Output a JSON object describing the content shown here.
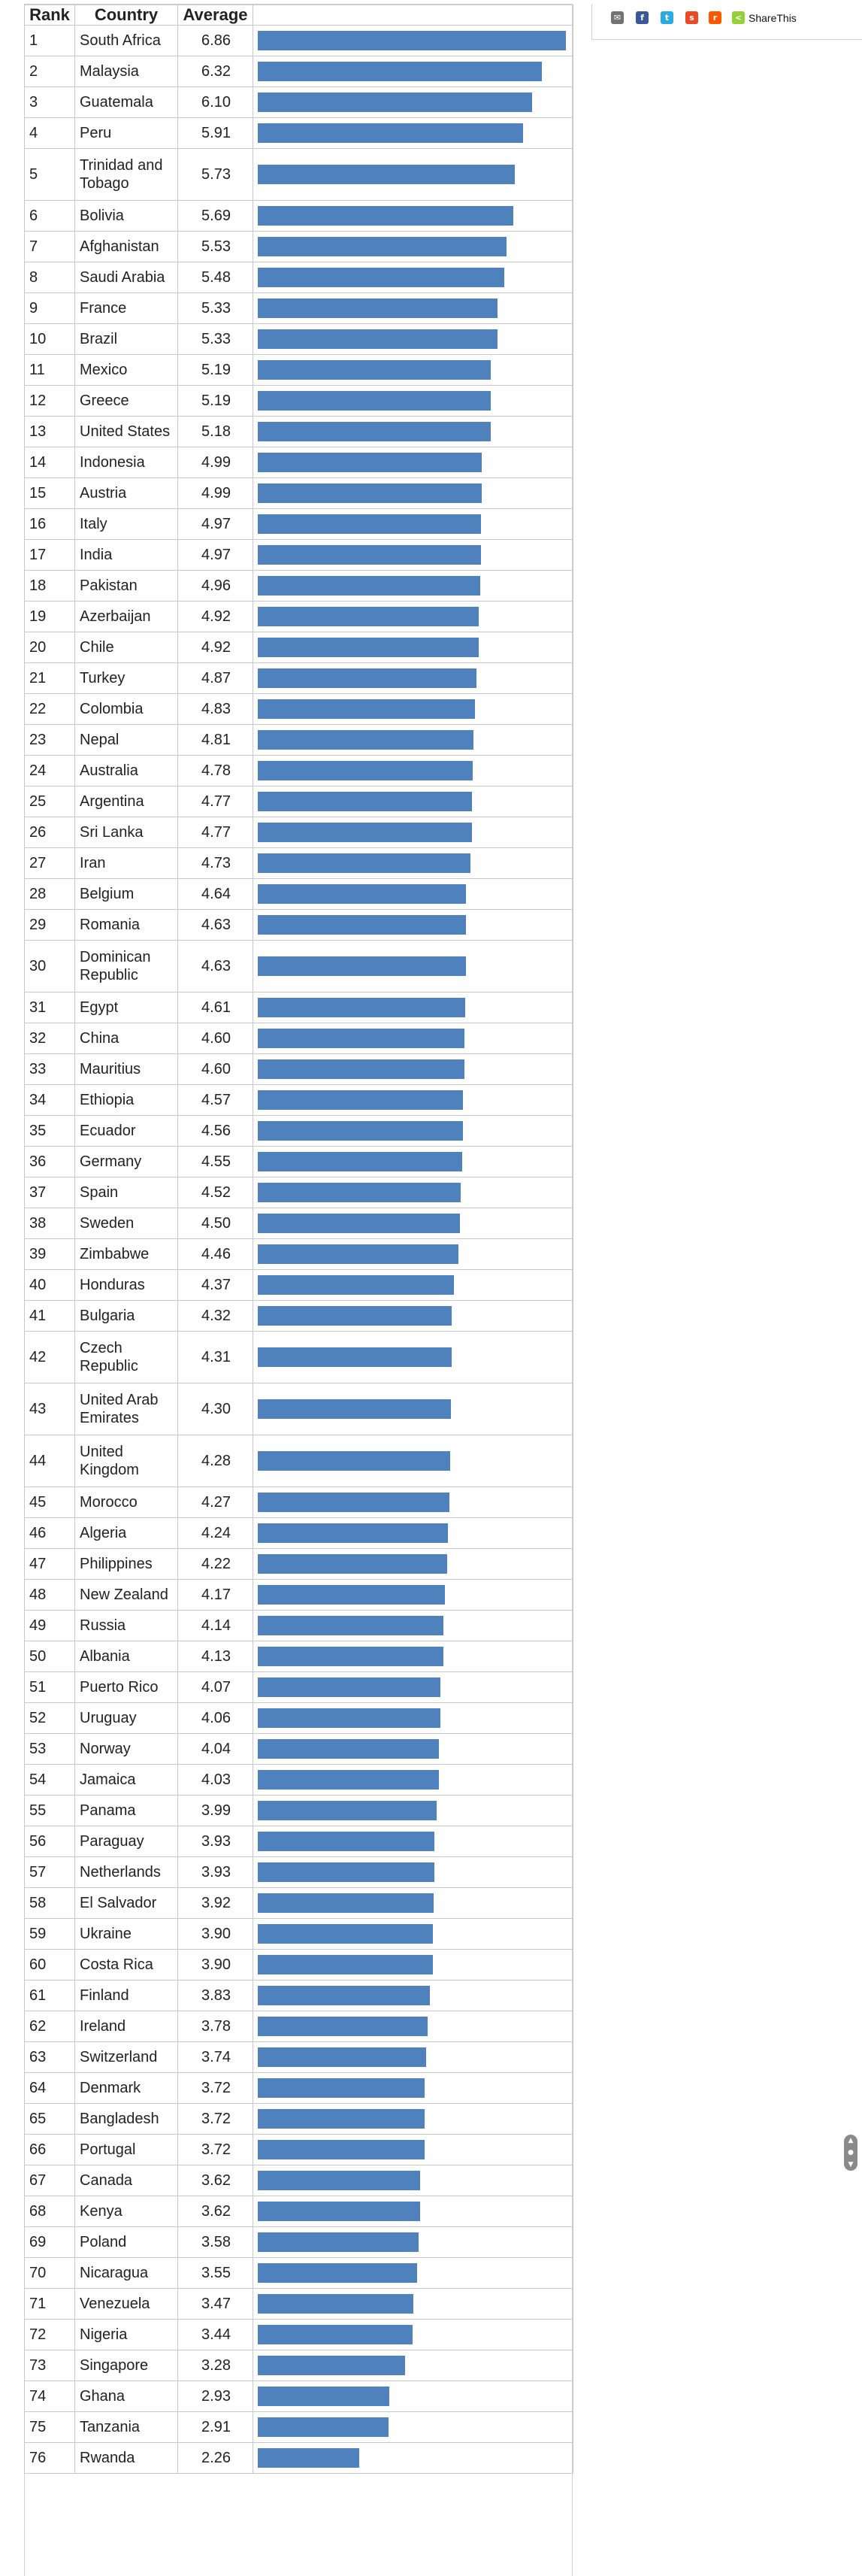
{
  "table": {
    "headers": {
      "rank": "Rank",
      "country": "Country",
      "average": "Average"
    }
  },
  "share": {
    "label": "ShareThis"
  },
  "colors": {
    "bar": "#4f81bd",
    "email": "#737373",
    "facebook": "#3b5998",
    "twitter": "#2ca9e1",
    "stumbleupon": "#eb4924",
    "reddit": "#ff5700",
    "sharethis": "#95d03a"
  },
  "chart_data": {
    "type": "bar",
    "orientation": "horizontal",
    "value_label": "Average",
    "rows": [
      {
        "rank": "1",
        "country": "South Africa",
        "average": "6.86"
      },
      {
        "rank": "2",
        "country": "Malaysia",
        "average": "6.32"
      },
      {
        "rank": "3",
        "country": "Guatemala",
        "average": "6.10"
      },
      {
        "rank": "4",
        "country": "Peru",
        "average": "5.91"
      },
      {
        "rank": "5",
        "country": "Trinidad and Tobago",
        "average": "5.73"
      },
      {
        "rank": "6",
        "country": "Bolivia",
        "average": "5.69"
      },
      {
        "rank": "7",
        "country": "Afghanistan",
        "average": "5.53"
      },
      {
        "rank": "8",
        "country": "Saudi Arabia",
        "average": "5.48"
      },
      {
        "rank": "9",
        "country": "France",
        "average": "5.33"
      },
      {
        "rank": "10",
        "country": "Brazil",
        "average": "5.33"
      },
      {
        "rank": "11",
        "country": "Mexico",
        "average": "5.19"
      },
      {
        "rank": "12",
        "country": "Greece",
        "average": "5.19"
      },
      {
        "rank": "13",
        "country": "United States",
        "average": "5.18"
      },
      {
        "rank": "14",
        "country": "Indonesia",
        "average": "4.99"
      },
      {
        "rank": "15",
        "country": "Austria",
        "average": "4.99"
      },
      {
        "rank": "16",
        "country": "Italy",
        "average": "4.97"
      },
      {
        "rank": "17",
        "country": "India",
        "average": "4.97"
      },
      {
        "rank": "18",
        "country": "Pakistan",
        "average": "4.96"
      },
      {
        "rank": "19",
        "country": "Azerbaijan",
        "average": "4.92"
      },
      {
        "rank": "20",
        "country": "Chile",
        "average": "4.92"
      },
      {
        "rank": "21",
        "country": "Turkey",
        "average": "4.87"
      },
      {
        "rank": "22",
        "country": "Colombia",
        "average": "4.83"
      },
      {
        "rank": "23",
        "country": "Nepal",
        "average": "4.81"
      },
      {
        "rank": "24",
        "country": "Australia",
        "average": "4.78"
      },
      {
        "rank": "25",
        "country": "Argentina",
        "average": "4.77"
      },
      {
        "rank": "26",
        "country": "Sri Lanka",
        "average": "4.77"
      },
      {
        "rank": "27",
        "country": "Iran",
        "average": "4.73"
      },
      {
        "rank": "28",
        "country": "Belgium",
        "average": "4.64"
      },
      {
        "rank": "29",
        "country": "Romania",
        "average": "4.63"
      },
      {
        "rank": "30",
        "country": "Dominican Republic",
        "average": "4.63"
      },
      {
        "rank": "31",
        "country": "Egypt",
        "average": "4.61"
      },
      {
        "rank": "32",
        "country": "China",
        "average": "4.60"
      },
      {
        "rank": "33",
        "country": "Mauritius",
        "average": "4.60"
      },
      {
        "rank": "34",
        "country": "Ethiopia",
        "average": "4.57"
      },
      {
        "rank": "35",
        "country": "Ecuador",
        "average": "4.56"
      },
      {
        "rank": "36",
        "country": "Germany",
        "average": "4.55"
      },
      {
        "rank": "37",
        "country": "Spain",
        "average": "4.52"
      },
      {
        "rank": "38",
        "country": "Sweden",
        "average": "4.50"
      },
      {
        "rank": "39",
        "country": "Zimbabwe",
        "average": "4.46"
      },
      {
        "rank": "40",
        "country": "Honduras",
        "average": "4.37"
      },
      {
        "rank": "41",
        "country": "Bulgaria",
        "average": "4.32"
      },
      {
        "rank": "42",
        "country": "Czech Republic",
        "average": "4.31"
      },
      {
        "rank": "43",
        "country": "United Arab Emirates",
        "average": "4.30"
      },
      {
        "rank": "44",
        "country": "United Kingdom",
        "average": "4.28"
      },
      {
        "rank": "45",
        "country": "Morocco",
        "average": "4.27"
      },
      {
        "rank": "46",
        "country": "Algeria",
        "average": "4.24"
      },
      {
        "rank": "47",
        "country": "Philippines",
        "average": "4.22"
      },
      {
        "rank": "48",
        "country": "New Zealand",
        "average": "4.17"
      },
      {
        "rank": "49",
        "country": "Russia",
        "average": "4.14"
      },
      {
        "rank": "50",
        "country": "Albania",
        "average": "4.13"
      },
      {
        "rank": "51",
        "country": "Puerto Rico",
        "average": "4.07"
      },
      {
        "rank": "52",
        "country": "Uruguay",
        "average": "4.06"
      },
      {
        "rank": "53",
        "country": "Norway",
        "average": "4.04"
      },
      {
        "rank": "54",
        "country": "Jamaica",
        "average": "4.03"
      },
      {
        "rank": "55",
        "country": "Panama",
        "average": "3.99"
      },
      {
        "rank": "56",
        "country": "Paraguay",
        "average": "3.93"
      },
      {
        "rank": "57",
        "country": "Netherlands",
        "average": "3.93"
      },
      {
        "rank": "58",
        "country": "El Salvador",
        "average": "3.92"
      },
      {
        "rank": "59",
        "country": "Ukraine",
        "average": "3.90"
      },
      {
        "rank": "60",
        "country": "Costa Rica",
        "average": "3.90"
      },
      {
        "rank": "61",
        "country": "Finland",
        "average": "3.83"
      },
      {
        "rank": "62",
        "country": "Ireland",
        "average": "3.78"
      },
      {
        "rank": "63",
        "country": "Switzerland",
        "average": "3.74"
      },
      {
        "rank": "64",
        "country": "Denmark",
        "average": "3.72"
      },
      {
        "rank": "65",
        "country": "Bangladesh",
        "average": "3.72"
      },
      {
        "rank": "66",
        "country": "Portugal",
        "average": "3.72"
      },
      {
        "rank": "67",
        "country": "Canada",
        "average": "3.62"
      },
      {
        "rank": "68",
        "country": "Kenya",
        "average": "3.62"
      },
      {
        "rank": "69",
        "country": "Poland",
        "average": "3.58"
      },
      {
        "rank": "70",
        "country": "Nicaragua",
        "average": "3.55"
      },
      {
        "rank": "71",
        "country": "Venezuela",
        "average": "3.47"
      },
      {
        "rank": "72",
        "country": "Nigeria",
        "average": "3.44"
      },
      {
        "rank": "73",
        "country": "Singapore",
        "average": "3.28"
      },
      {
        "rank": "74",
        "country": "Ghana",
        "average": "2.93"
      },
      {
        "rank": "75",
        "country": "Tanzania",
        "average": "2.91"
      },
      {
        "rank": "76",
        "country": "Rwanda",
        "average": "2.26"
      }
    ]
  }
}
